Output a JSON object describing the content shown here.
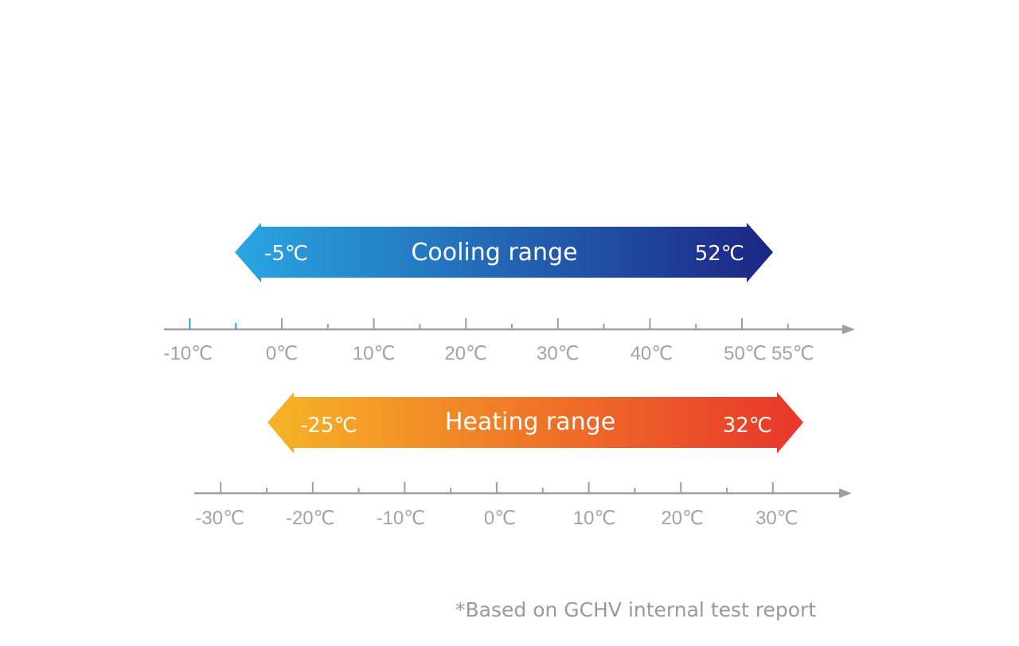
{
  "colors": {
    "axis": "#9e9e9e",
    "tick_label": "#a3a3a3",
    "marker": "#2aa7c5",
    "cooling_start": "#29a6e3",
    "cooling_end": "#1c2584",
    "heating_start": "#f6b426",
    "heating_end": "#e8362a"
  },
  "cooling": {
    "label": "Cooling range",
    "min": -5,
    "max": 52,
    "min_label": "-5℃",
    "max_label": "52℃"
  },
  "heating": {
    "label": "Heating range",
    "min": -25,
    "max": 32,
    "min_label": "-25℃",
    "max_label": "32℃"
  },
  "cooling_axis": {
    "tick_labels": [
      "-10℃",
      "0℃",
      "10℃",
      "20℃",
      "30℃",
      "40℃",
      "50℃",
      "55℃"
    ],
    "major_ticks": [
      -10,
      0,
      10,
      20,
      30,
      40,
      50
    ],
    "minor_ticks": [
      5,
      15,
      25,
      35,
      45,
      55
    ],
    "marked_ticks": [
      -10,
      -5
    ]
  },
  "heating_axis": {
    "tick_labels": [
      "-30℃",
      "-20℃",
      "-10℃",
      "0℃",
      "10℃",
      "20℃",
      "30℃"
    ],
    "major_ticks": [
      -30,
      -20,
      -10,
      0,
      10,
      20,
      30
    ],
    "minor_ticks": [
      -25,
      -15,
      -5,
      5,
      15,
      25
    ]
  },
  "footnote": "*Based on GCHV internal test report"
}
